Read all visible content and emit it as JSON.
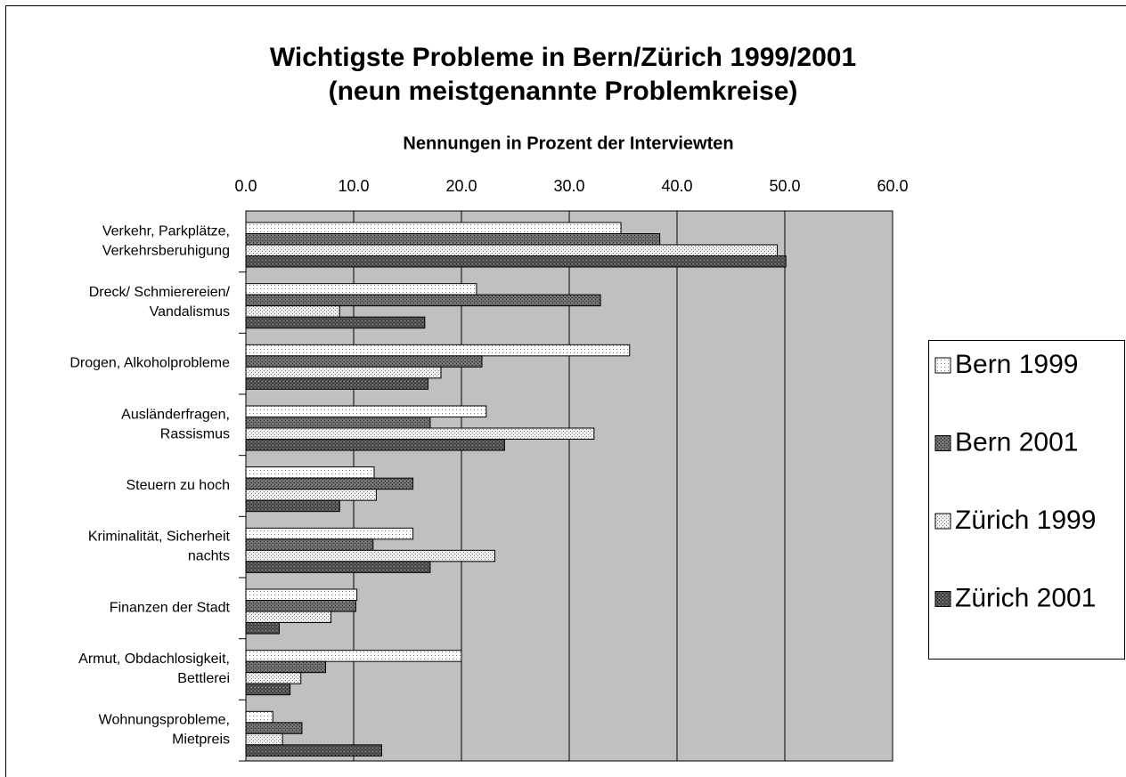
{
  "chart_data": {
    "type": "hbar",
    "title": "Wichtigste Probleme in Bern/Zürich 1999/2001",
    "subtitle": "(neun meistgenannte Problemkreise)",
    "x_label": "Nennungen in Prozent der Interviewten",
    "categories": [
      "Verkehr, Parkplätze,\nVerkehrsberuhigung",
      "Dreck/ Schmierereien/\nVandalismus",
      "Drogen, Alkoholprobleme",
      "Ausländerfragen,\nRassismus",
      "Steuern zu hoch",
      "Kriminalität, Sicherheit\nnachts",
      "Finanzen der Stadt",
      "Armut, Obdachlosigkeit,\nBettlerei",
      "Wohnungsprobleme,\nMietpreis"
    ],
    "series": [
      {
        "name": "Bern 1999",
        "color": "#ffffff",
        "values": [
          34.8,
          21.4,
          35.6,
          22.3,
          11.9,
          15.5,
          10.3,
          20.0,
          2.5
        ]
      },
      {
        "name": "Bern 2001",
        "color": "#6e6e6e",
        "values": [
          38.4,
          32.9,
          21.9,
          17.1,
          15.5,
          11.8,
          10.2,
          7.4,
          5.2
        ]
      },
      {
        "name": "Zürich 1999",
        "color": "#f0f0f0",
        "values": [
          49.3,
          8.7,
          18.1,
          32.3,
          12.1,
          23.1,
          7.9,
          5.1,
          3.4
        ]
      },
      {
        "name": "Zürich 2001",
        "color": "#555555",
        "values": [
          50.1,
          16.6,
          16.9,
          24.0,
          8.7,
          17.1,
          3.1,
          4.1,
          12.6
        ]
      }
    ],
    "xlim": [
      0,
      60
    ],
    "xticks": [
      {
        "value": 0,
        "label": "0.0"
      },
      {
        "value": 10,
        "label": "10.0"
      },
      {
        "value": 20,
        "label": "20.0"
      },
      {
        "value": 30,
        "label": "30.0"
      },
      {
        "value": 40,
        "label": "40.0"
      },
      {
        "value": 50,
        "label": "50.0"
      },
      {
        "value": 60,
        "label": "60.0"
      }
    ],
    "plot_background": "#c0c0c0",
    "grid": true,
    "legend": "right"
  }
}
